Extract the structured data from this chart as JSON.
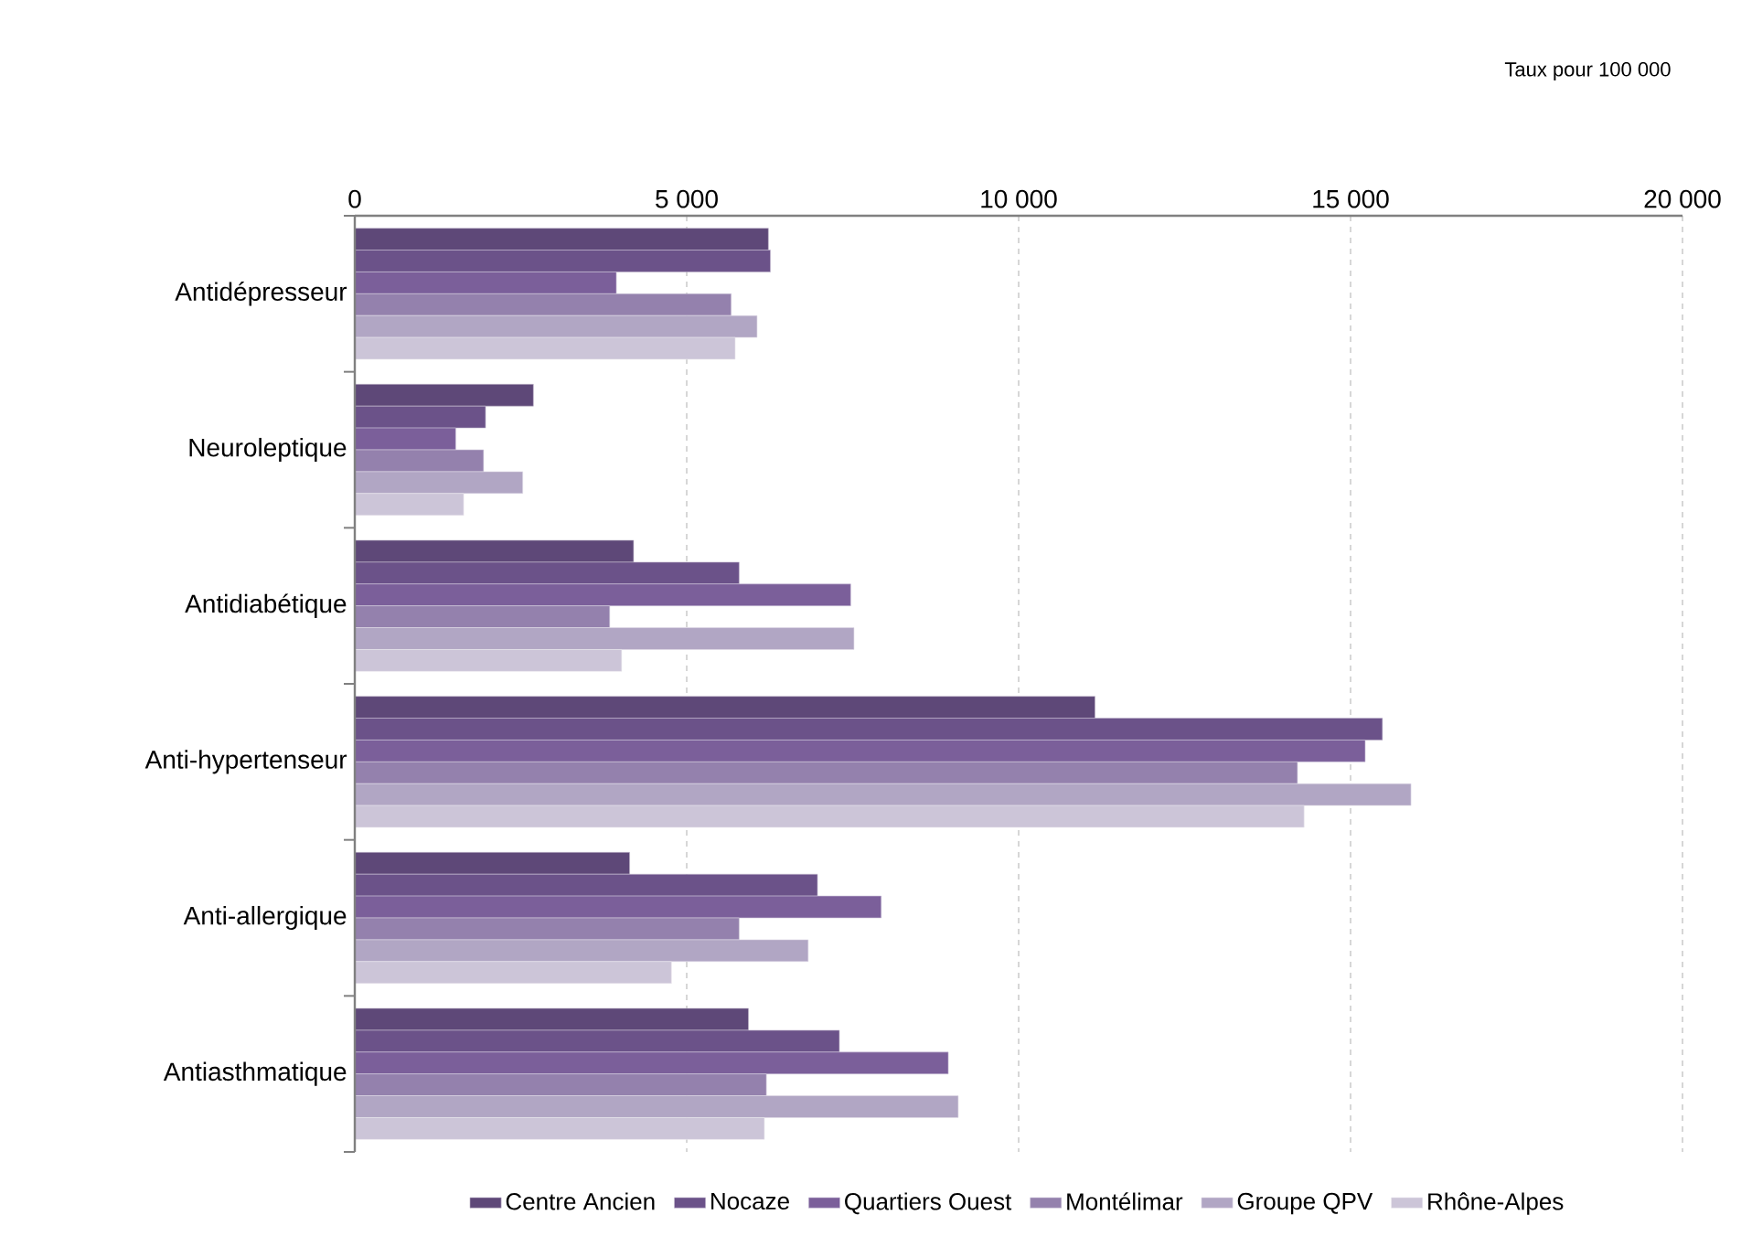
{
  "chart_data": {
    "type": "bar",
    "orientation": "horizontal",
    "categories": [
      "Antidépresseur",
      "Neuroleptique",
      "Antidiabétique",
      "Anti-hypertenseur",
      "Anti-allergique",
      "Antiasthmatique"
    ],
    "series": [
      {
        "name": "Centre Ancien",
        "color": "#5e4878",
        "values": [
          6230,
          2690,
          4200,
          11150,
          4140,
          5930
        ]
      },
      {
        "name": "Nocaze",
        "color": "#6b5289",
        "values": [
          6260,
          1970,
          5790,
          15480,
          6970,
          7300
        ]
      },
      {
        "name": "Quartiers Ouest",
        "color": "#7b5f9a",
        "values": [
          3940,
          1520,
          7470,
          15220,
          7930,
          8940
        ]
      },
      {
        "name": "Montélimar",
        "color": "#9481ad",
        "values": [
          5670,
          1940,
          3840,
          14200,
          5790,
          6200
        ]
      },
      {
        "name": "Groupe QPV",
        "color": "#b1a6c4",
        "values": [
          6060,
          2530,
          7520,
          15910,
          6830,
          9090
        ]
      },
      {
        "name": "Rhône-Alpes",
        "color": "#ccc5d8",
        "values": [
          5730,
          1640,
          4020,
          14300,
          4770,
          6170
        ]
      }
    ],
    "xlim": [
      0,
      20000
    ],
    "xticks": [
      {
        "value": 0,
        "label": "0"
      },
      {
        "value": 5000,
        "label": "5 000"
      },
      {
        "value": 10000,
        "label": "10 000"
      },
      {
        "value": 15000,
        "label": "15 000"
      },
      {
        "value": 20000,
        "label": "20 000"
      }
    ],
    "grid": "x",
    "legend": "bottom",
    "annotations": [
      "Taux pour 100 000"
    ]
  }
}
